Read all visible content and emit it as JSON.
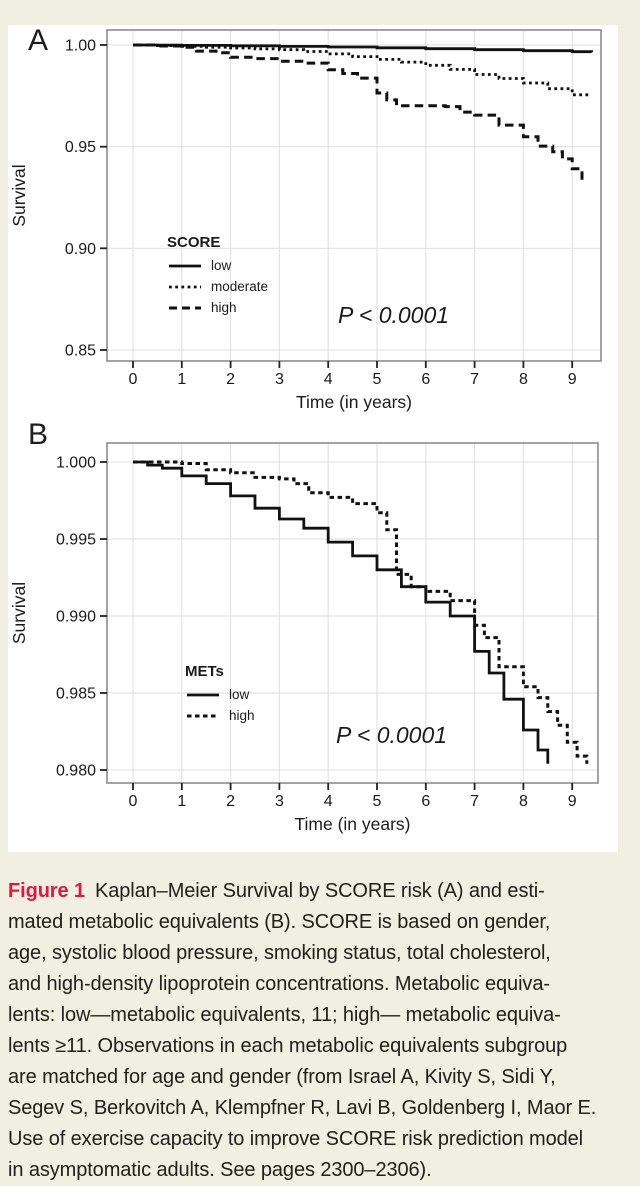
{
  "page": {
    "background_color": "#f0efe2",
    "figure_background": "#ffffff",
    "accent_red": "#e0173e"
  },
  "chart_data": [
    {
      "type": "line",
      "subtype": "kaplan-meier-step",
      "panel_label": "A",
      "xlabel": "Time (in years)",
      "ylabel": "Survival",
      "xlim": [
        -0.5,
        9.6
      ],
      "ylim": [
        0.844,
        1.007
      ],
      "grid": "major-on",
      "legend_title": "SCORE",
      "legend_position": "center-left-inside",
      "p_value": "P < 0.0001",
      "x_ticks": [
        {
          "value": 0,
          "label": "0"
        },
        {
          "value": 1,
          "label": "1"
        },
        {
          "value": 2,
          "label": "2"
        },
        {
          "value": 3,
          "label": "3"
        },
        {
          "value": 4,
          "label": "4"
        },
        {
          "value": 5,
          "label": "5"
        },
        {
          "value": 6,
          "label": "6"
        },
        {
          "value": 7,
          "label": "7"
        },
        {
          "value": 8,
          "label": "8"
        },
        {
          "value": 9,
          "label": "9"
        }
      ],
      "y_ticks": [
        {
          "value": 1.0,
          "label": "1.00"
        },
        {
          "value": 0.95,
          "label": "0.95"
        },
        {
          "value": 0.9,
          "label": "0.90"
        },
        {
          "value": 0.85,
          "label": "0.85"
        }
      ],
      "series": [
        {
          "name": "low",
          "style": "solid",
          "points": [
            [
              0,
              1.0
            ],
            [
              0.5,
              0.9999
            ],
            [
              1,
              0.9998
            ],
            [
              2,
              0.9996
            ],
            [
              3,
              0.9993
            ],
            [
              4,
              0.999
            ],
            [
              5,
              0.9986
            ],
            [
              6,
              0.9982
            ],
            [
              7,
              0.9977
            ],
            [
              8,
              0.9972
            ],
            [
              9,
              0.9967
            ],
            [
              9.4,
              0.9965
            ]
          ]
        },
        {
          "name": "moderate",
          "style": "dotted",
          "points": [
            [
              0,
              1.0
            ],
            [
              0.5,
              0.9997
            ],
            [
              1,
              0.9993
            ],
            [
              1.5,
              0.9989
            ],
            [
              2,
              0.9985
            ],
            [
              2.5,
              0.9981
            ],
            [
              3,
              0.9977
            ],
            [
              3.5,
              0.9968
            ],
            [
              4,
              0.9956
            ],
            [
              4.5,
              0.9943
            ],
            [
              5,
              0.9929
            ],
            [
              5.5,
              0.9916
            ],
            [
              6,
              0.99
            ],
            [
              6.5,
              0.988
            ],
            [
              7,
              0.9855
            ],
            [
              7.5,
              0.9835
            ],
            [
              8,
              0.9813
            ],
            [
              8.5,
              0.9785
            ],
            [
              9,
              0.9755
            ],
            [
              9.3,
              0.9738
            ]
          ]
        },
        {
          "name": "high",
          "style": "dashed",
          "points": [
            [
              0,
              1.0
            ],
            [
              0.5,
              0.9995
            ],
            [
              1,
              0.9989
            ],
            [
              1.3,
              0.997
            ],
            [
              1.7,
              0.9962
            ],
            [
              2,
              0.994
            ],
            [
              2.5,
              0.9933
            ],
            [
              3,
              0.992
            ],
            [
              3.5,
              0.9911
            ],
            [
              4,
              0.9878
            ],
            [
              4.3,
              0.986
            ],
            [
              4.6,
              0.9837
            ],
            [
              5,
              0.9764
            ],
            [
              5.2,
              0.973
            ],
            [
              5.4,
              0.9701
            ],
            [
              6.4,
              0.9697
            ],
            [
              6.7,
              0.967
            ],
            [
              7,
              0.9655
            ],
            [
              7.5,
              0.9606
            ],
            [
              8,
              0.9549
            ],
            [
              8.3,
              0.9503
            ],
            [
              8.6,
              0.9475
            ],
            [
              8.8,
              0.944
            ],
            [
              9,
              0.9391
            ],
            [
              9.2,
              0.9337
            ]
          ]
        }
      ]
    },
    {
      "type": "line",
      "subtype": "kaplan-meier-step",
      "panel_label": "B",
      "xlabel": "Time (in years)",
      "ylabel": "Survival",
      "xlim": [
        -0.5,
        9.6
      ],
      "ylim": [
        0.979,
        1.0012
      ],
      "grid": "major-on",
      "legend_title": "METs",
      "legend_position": "center-left-inside",
      "p_value": "P < 0.0001",
      "x_ticks": [
        {
          "value": 0,
          "label": "0"
        },
        {
          "value": 1,
          "label": "1"
        },
        {
          "value": 2,
          "label": "2"
        },
        {
          "value": 3,
          "label": "3"
        },
        {
          "value": 4,
          "label": "4"
        },
        {
          "value": 5,
          "label": "5"
        },
        {
          "value": 6,
          "label": "6"
        },
        {
          "value": 7,
          "label": "7"
        },
        {
          "value": 8,
          "label": "8"
        },
        {
          "value": 9,
          "label": "9"
        }
      ],
      "y_ticks": [
        {
          "value": 1.0,
          "label": "1.000"
        },
        {
          "value": 0.995,
          "label": "0.995"
        },
        {
          "value": 0.99,
          "label": "0.990"
        },
        {
          "value": 0.985,
          "label": "0.985"
        },
        {
          "value": 0.98,
          "label": "0.980"
        }
      ],
      "series": [
        {
          "name": "low",
          "style": "solid",
          "points": [
            [
              0,
              1.0
            ],
            [
              0.3,
              0.9998
            ],
            [
              0.6,
              0.9996
            ],
            [
              1,
              0.9991
            ],
            [
              1.5,
              0.9986
            ],
            [
              2,
              0.9978
            ],
            [
              2.5,
              0.997
            ],
            [
              3,
              0.9963
            ],
            [
              3.5,
              0.9957
            ],
            [
              4,
              0.9948
            ],
            [
              4.5,
              0.9939
            ],
            [
              5,
              0.993
            ],
            [
              5.5,
              0.9919
            ],
            [
              6,
              0.9909
            ],
            [
              6.5,
              0.99
            ],
            [
              7,
              0.9877
            ],
            [
              7.3,
              0.9863
            ],
            [
              7.6,
              0.9846
            ],
            [
              8,
              0.9826
            ],
            [
              8.3,
              0.9813
            ],
            [
              8.5,
              0.9804
            ]
          ]
        },
        {
          "name": "high",
          "style": "shortdash",
          "points": [
            [
              0,
              1.0
            ],
            [
              1,
              0.9999
            ],
            [
              1.5,
              0.9995
            ],
            [
              2,
              0.9993
            ],
            [
              2.5,
              0.999
            ],
            [
              3,
              0.9989
            ],
            [
              3.3,
              0.9986
            ],
            [
              3.6,
              0.998
            ],
            [
              4,
              0.9977
            ],
            [
              4.5,
              0.9973
            ],
            [
              5,
              0.9967
            ],
            [
              5.2,
              0.9956
            ],
            [
              5.4,
              0.9927
            ],
            [
              5.7,
              0.9919
            ],
            [
              6,
              0.9916
            ],
            [
              6.5,
              0.991
            ],
            [
              7,
              0.9894
            ],
            [
              7.2,
              0.9886
            ],
            [
              7.5,
              0.9867
            ],
            [
              8,
              0.9854
            ],
            [
              8.3,
              0.9847
            ],
            [
              8.5,
              0.9838
            ],
            [
              8.7,
              0.9829
            ],
            [
              8.9,
              0.9818
            ],
            [
              9.1,
              0.9809
            ],
            [
              9.3,
              0.9804
            ]
          ]
        }
      ]
    }
  ],
  "caption": {
    "label": "Figure 1",
    "lines": [
      "Kaplan–Meier Survival by SCORE risk (A) and esti-",
      "mated metabolic equivalents (B). SCORE is based on gender,",
      "age, systolic blood pressure, smoking status, total cholesterol,",
      "and high-density lipoprotein concentrations. Metabolic equiva-",
      "lents: low—metabolic equivalents, 11; high— metabolic equiva-",
      "lents ≥11. Observations in each metabolic equivalents subgroup",
      "are matched for age and gender (from Israel A, Kivity S, Sidi Y,",
      "Segev S, Berkovitch A, Klempfner R, Lavi B, Goldenberg I, Maor E.",
      "Use of exercise capacity to improve SCORE risk prediction model",
      "in asymptomatic adults. See pages 2300–2306)."
    ]
  }
}
